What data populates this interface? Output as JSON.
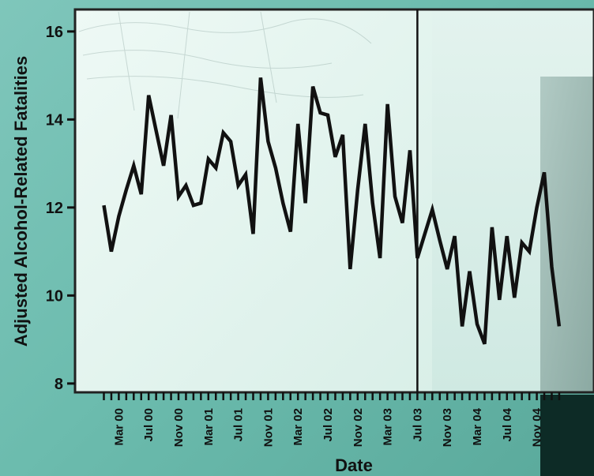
{
  "chart_data": {
    "type": "line",
    "ylabel": "Adjusted Alcohol-Related Fatalities",
    "xlabel": "Date",
    "ylim": [
      7.8,
      16.5
    ],
    "yticks": [
      8,
      10,
      12,
      14,
      16
    ],
    "x_tick_labels": [
      "Mar 00",
      "Jul 00",
      "Nov 00",
      "Mar 01",
      "Jul 01",
      "Nov 01",
      "Mar 02",
      "Jul 02",
      "Nov 02",
      "Mar 03",
      "Jul 03",
      "Nov 03",
      "Mar 04",
      "Jul 04",
      "Nov 04"
    ],
    "x_start": "Jan 00",
    "intervention": "Jul 03",
    "series": [
      {
        "values": [
          12.05,
          11.0,
          11.8,
          12.4,
          12.95,
          12.3,
          14.55,
          13.75,
          12.95,
          14.1,
          12.25,
          12.5,
          12.05,
          12.1,
          13.1,
          12.9,
          13.7,
          13.5,
          12.5,
          12.75,
          11.4,
          14.95,
          13.5,
          12.9,
          12.1,
          11.45,
          13.9,
          12.1,
          14.75,
          14.15,
          14.1,
          13.15,
          13.65,
          10.6,
          12.4,
          13.9,
          12.1,
          10.85,
          14.35,
          12.25,
          11.65,
          13.3,
          10.85,
          11.4,
          11.95,
          11.25,
          10.6,
          11.35,
          9.3,
          10.55,
          9.35,
          8.9,
          11.55,
          9.9,
          11.35,
          9.95,
          11.2,
          11.0,
          12.0,
          12.8,
          10.65,
          9.3
        ]
      }
    ],
    "style": {
      "line_color": "#111111",
      "plot_bg": "#e4f4ef",
      "post_bg": "#dceee9",
      "frame": "#222222"
    }
  }
}
